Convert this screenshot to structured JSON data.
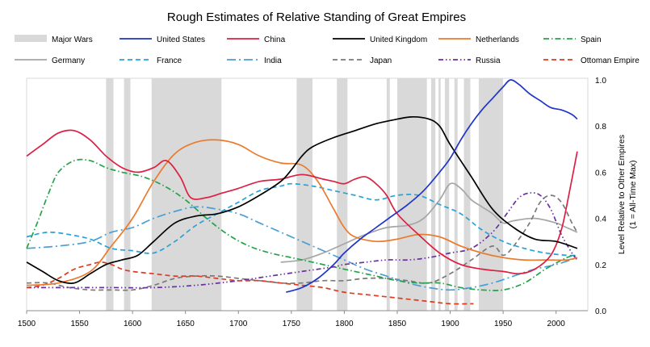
{
  "chart_data": {
    "type": "line",
    "title": "Rough Estimates of Relative Standing of Great Empires",
    "xlabel": "",
    "ylabel": "Level Relative to Other Empires",
    "ylabel_sub": "(1 = All-Time Max)",
    "xlim": [
      1500,
      2030
    ],
    "ylim": [
      0,
      1.0
    ],
    "x_ticks": [
      1500,
      1550,
      1600,
      1650,
      1700,
      1750,
      1800,
      1850,
      1900,
      1950,
      2000
    ],
    "x_tick_labels": [
      "1500",
      "1550",
      "1600",
      "1650",
      "1700",
      "1750",
      "1800",
      "1850",
      "1900",
      "1950",
      "2000"
    ],
    "y_ticks": [
      0,
      0.2,
      0.4,
      0.6,
      0.8,
      1.0
    ],
    "y_tick_labels": [
      "0.0",
      "0.2",
      "0.4",
      "0.6",
      "0.8",
      "1.0"
    ],
    "legend_position": "top",
    "major_wars_label": "Major Wars",
    "major_wars": [
      [
        1575,
        1582
      ],
      [
        1592,
        1598
      ],
      [
        1618,
        1684
      ],
      [
        1755,
        1770
      ],
      [
        1793,
        1803
      ],
      [
        1840,
        1843
      ],
      [
        1850,
        1878
      ],
      [
        1882,
        1886
      ],
      [
        1889,
        1891
      ],
      [
        1895,
        1899
      ],
      [
        1904,
        1907
      ],
      [
        1913,
        1919
      ],
      [
        1927,
        1950
      ]
    ],
    "series": [
      {
        "name": "United States",
        "color": "#1f34c9",
        "dash": "solid",
        "x": [
          1745,
          1760,
          1775,
          1790,
          1800,
          1815,
          1830,
          1845,
          1860,
          1875,
          1890,
          1900,
          1910,
          1920,
          1930,
          1940,
          1950,
          1957,
          1965,
          1975,
          1985,
          1995,
          2005,
          2015,
          2020
        ],
        "values": [
          0.08,
          0.1,
          0.14,
          0.2,
          0.25,
          0.31,
          0.36,
          0.41,
          0.46,
          0.52,
          0.6,
          0.66,
          0.74,
          0.81,
          0.87,
          0.92,
          0.97,
          1.0,
          0.98,
          0.94,
          0.91,
          0.88,
          0.87,
          0.85,
          0.83
        ]
      },
      {
        "name": "China",
        "color": "#dd1f42",
        "dash": "solid",
        "x": [
          1500,
          1515,
          1530,
          1545,
          1560,
          1575,
          1590,
          1605,
          1620,
          1632,
          1645,
          1655,
          1670,
          1685,
          1700,
          1720,
          1740,
          1760,
          1780,
          1790,
          1800,
          1810,
          1820,
          1830,
          1840,
          1850,
          1870,
          1890,
          1910,
          1930,
          1950,
          1965,
          1980,
          1995,
          2005,
          2012,
          2020
        ],
        "values": [
          0.67,
          0.72,
          0.77,
          0.78,
          0.74,
          0.67,
          0.62,
          0.6,
          0.62,
          0.65,
          0.58,
          0.49,
          0.49,
          0.51,
          0.53,
          0.56,
          0.57,
          0.59,
          0.57,
          0.56,
          0.55,
          0.57,
          0.58,
          0.55,
          0.5,
          0.42,
          0.33,
          0.25,
          0.2,
          0.18,
          0.17,
          0.16,
          0.18,
          0.24,
          0.35,
          0.5,
          0.69
        ]
      },
      {
        "name": "United Kingdom",
        "color": "#000000",
        "dash": "solid",
        "x": [
          1500,
          1515,
          1530,
          1545,
          1560,
          1575,
          1590,
          1605,
          1620,
          1640,
          1660,
          1680,
          1700,
          1720,
          1740,
          1750,
          1760,
          1770,
          1790,
          1810,
          1830,
          1850,
          1865,
          1880,
          1890,
          1900,
          1920,
          1940,
          1960,
          1980,
          2000,
          2020
        ],
        "values": [
          0.21,
          0.17,
          0.13,
          0.12,
          0.16,
          0.2,
          0.22,
          0.24,
          0.3,
          0.38,
          0.41,
          0.42,
          0.45,
          0.5,
          0.56,
          0.61,
          0.67,
          0.71,
          0.75,
          0.78,
          0.81,
          0.83,
          0.84,
          0.83,
          0.8,
          0.72,
          0.58,
          0.44,
          0.36,
          0.31,
          0.3,
          0.27
        ]
      },
      {
        "name": "Netherlands",
        "color": "#ec7a2c",
        "dash": "solid",
        "x": [
          1500,
          1530,
          1560,
          1580,
          1600,
          1620,
          1640,
          1660,
          1680,
          1700,
          1720,
          1740,
          1760,
          1775,
          1790,
          1800,
          1810,
          1830,
          1850,
          1870,
          1890,
          1910,
          1930,
          1950,
          1970,
          1990,
          2010,
          2020
        ],
        "values": [
          0.11,
          0.12,
          0.17,
          0.28,
          0.4,
          0.56,
          0.68,
          0.73,
          0.74,
          0.72,
          0.67,
          0.64,
          0.63,
          0.56,
          0.44,
          0.36,
          0.32,
          0.3,
          0.31,
          0.33,
          0.32,
          0.28,
          0.25,
          0.23,
          0.22,
          0.22,
          0.22,
          0.23
        ]
      },
      {
        "name": "Spain",
        "color": "#24a348",
        "dash": "dashdot",
        "x": [
          1500,
          1510,
          1520,
          1530,
          1545,
          1560,
          1575,
          1590,
          1610,
          1630,
          1650,
          1670,
          1690,
          1710,
          1730,
          1750,
          1770,
          1790,
          1810,
          1830,
          1850,
          1870,
          1890,
          1910,
          1930,
          1950,
          1970,
          1990,
          2010,
          2020
        ],
        "values": [
          0.27,
          0.38,
          0.5,
          0.6,
          0.65,
          0.65,
          0.62,
          0.6,
          0.58,
          0.54,
          0.48,
          0.4,
          0.33,
          0.28,
          0.25,
          0.23,
          0.21,
          0.19,
          0.17,
          0.15,
          0.13,
          0.12,
          0.12,
          0.1,
          0.09,
          0.09,
          0.12,
          0.18,
          0.23,
          0.24
        ]
      },
      {
        "name": "Germany",
        "color": "#a6a6a6",
        "dash": "solid",
        "x": [
          1740,
          1760,
          1780,
          1800,
          1820,
          1840,
          1860,
          1875,
          1890,
          1900,
          1910,
          1920,
          1930,
          1940,
          1950,
          1960,
          1980,
          2000,
          2010,
          2020
        ],
        "values": [
          0.21,
          0.22,
          0.25,
          0.29,
          0.33,
          0.36,
          0.37,
          0.4,
          0.48,
          0.55,
          0.53,
          0.48,
          0.45,
          0.42,
          0.38,
          0.39,
          0.4,
          0.38,
          0.36,
          0.34
        ]
      },
      {
        "name": "France",
        "color": "#27a2da",
        "dash": "dashed",
        "x": [
          1500,
          1520,
          1540,
          1560,
          1580,
          1600,
          1620,
          1640,
          1660,
          1680,
          1700,
          1720,
          1740,
          1750,
          1770,
          1790,
          1810,
          1830,
          1850,
          1870,
          1890,
          1910,
          1930,
          1950,
          1970,
          1990,
          2010,
          2020
        ],
        "values": [
          0.32,
          0.34,
          0.33,
          0.31,
          0.27,
          0.26,
          0.25,
          0.3,
          0.37,
          0.42,
          0.47,
          0.52,
          0.54,
          0.55,
          0.54,
          0.52,
          0.5,
          0.48,
          0.5,
          0.5,
          0.46,
          0.42,
          0.35,
          0.3,
          0.27,
          0.25,
          0.24,
          0.24
        ]
      },
      {
        "name": "India",
        "color": "#4a9fd4",
        "dash": "longdashdot",
        "x": [
          1500,
          1530,
          1560,
          1580,
          1600,
          1620,
          1640,
          1660,
          1680,
          1700,
          1720,
          1740,
          1760,
          1780,
          1800,
          1820,
          1840,
          1860,
          1880,
          1900,
          1920,
          1940,
          1960,
          1980,
          2000,
          2020
        ],
        "values": [
          0.27,
          0.28,
          0.3,
          0.34,
          0.36,
          0.4,
          0.43,
          0.45,
          0.44,
          0.42,
          0.38,
          0.34,
          0.3,
          0.26,
          0.22,
          0.18,
          0.15,
          0.12,
          0.1,
          0.09,
          0.1,
          0.12,
          0.15,
          0.18,
          0.2,
          0.23
        ]
      },
      {
        "name": "Japan",
        "color": "#7a7a7a",
        "dash": "dashed",
        "x": [
          1500,
          1520,
          1540,
          1560,
          1580,
          1600,
          1620,
          1640,
          1660,
          1680,
          1700,
          1720,
          1740,
          1760,
          1780,
          1800,
          1820,
          1840,
          1860,
          1880,
          1900,
          1920,
          1940,
          1950,
          1960,
          1975,
          1985,
          1995,
          2005,
          2015,
          2020
        ],
        "values": [
          0.12,
          0.12,
          0.1,
          0.09,
          0.09,
          0.09,
          0.11,
          0.14,
          0.15,
          0.15,
          0.14,
          0.13,
          0.12,
          0.12,
          0.13,
          0.13,
          0.14,
          0.14,
          0.13,
          0.12,
          0.16,
          0.22,
          0.28,
          0.24,
          0.28,
          0.38,
          0.47,
          0.5,
          0.47,
          0.38,
          0.34
        ]
      },
      {
        "name": "Russia",
        "color": "#6a2fa0",
        "dash": "dashdotdot",
        "x": [
          1500,
          1540,
          1580,
          1620,
          1660,
          1700,
          1730,
          1760,
          1790,
          1800,
          1820,
          1840,
          1860,
          1880,
          1900,
          1920,
          1940,
          1955,
          1965,
          1975,
          1985,
          1995,
          2005,
          2015,
          2020
        ],
        "values": [
          0.1,
          0.1,
          0.1,
          0.1,
          0.11,
          0.13,
          0.15,
          0.17,
          0.19,
          0.2,
          0.21,
          0.22,
          0.22,
          0.23,
          0.25,
          0.27,
          0.34,
          0.43,
          0.49,
          0.51,
          0.5,
          0.44,
          0.33,
          0.25,
          0.22
        ]
      },
      {
        "name": "Ottoman Empire",
        "color": "#e13a1f",
        "dash": "dashed",
        "x": [
          1500,
          1515,
          1530,
          1545,
          1560,
          1570,
          1580,
          1590,
          1600,
          1620,
          1640,
          1660,
          1680,
          1700,
          1720,
          1740,
          1760,
          1780,
          1800,
          1820,
          1840,
          1860,
          1880,
          1900,
          1922
        ],
        "values": [
          0.1,
          0.11,
          0.14,
          0.18,
          0.2,
          0.21,
          0.2,
          0.18,
          0.17,
          0.16,
          0.15,
          0.15,
          0.14,
          0.13,
          0.13,
          0.12,
          0.11,
          0.1,
          0.08,
          0.07,
          0.06,
          0.05,
          0.04,
          0.03,
          0.03
        ]
      }
    ]
  }
}
